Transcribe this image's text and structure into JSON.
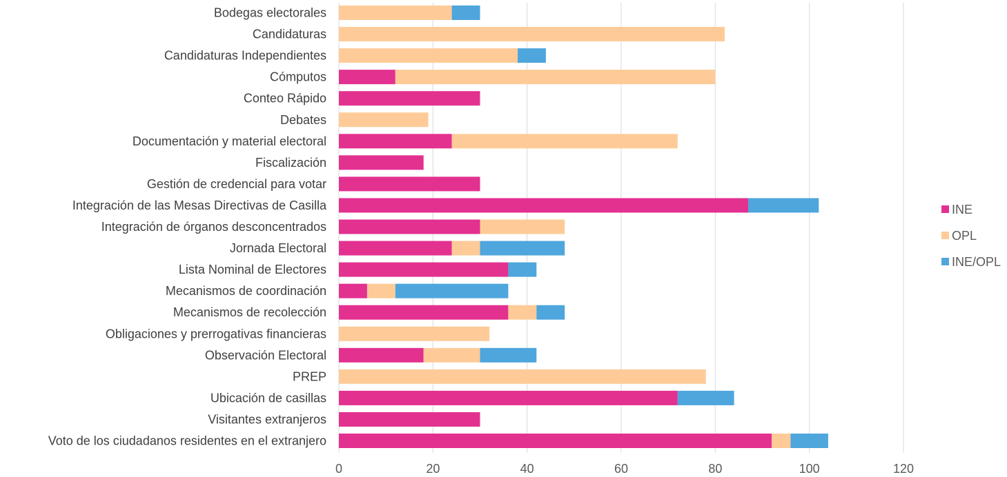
{
  "chart_data": {
    "type": "bar",
    "orientation": "horizontal",
    "stacked": true,
    "categories": [
      "Bodegas electorales",
      "Candidaturas",
      "Candidaturas Independientes",
      "Cómputos",
      "Conteo Rápido",
      "Debates",
      "Documentación y material electoral",
      "Fiscalización",
      "Gestión de credencial para votar",
      "Integración de las Mesas Directivas de Casilla",
      "Integración de órganos desconcentrados",
      "Jornada Electoral",
      "Lista Nominal de Electores",
      "Mecanismos de coordinación",
      "Mecanismos de recolección",
      "Obligaciones y prerrogativas financieras",
      "Observación Electoral",
      "PREP",
      "Ubicación de casillas",
      "Visitantes extranjeros",
      "Voto de los ciudadanos residentes en el extranjero"
    ],
    "series": [
      {
        "name": "INE",
        "color": "#e33190",
        "values": [
          0,
          0,
          0,
          12,
          30,
          0,
          24,
          18,
          30,
          87,
          30,
          24,
          36,
          6,
          36,
          0,
          18,
          0,
          72,
          30,
          92
        ]
      },
      {
        "name": "OPL",
        "color": "#fecb98",
        "values": [
          24,
          82,
          38,
          68,
          0,
          19,
          48,
          0,
          0,
          0,
          18,
          6,
          0,
          6,
          6,
          32,
          12,
          78,
          0,
          0,
          4
        ]
      },
      {
        "name": "INE/OPL",
        "color": "#4ea6dc",
        "values": [
          6,
          0,
          6,
          0,
          0,
          0,
          0,
          0,
          0,
          15,
          0,
          18,
          6,
          24,
          6,
          0,
          12,
          0,
          12,
          0,
          8
        ]
      }
    ],
    "x_ticks": [
      "0",
      "20",
      "40",
      "60",
      "80",
      "100",
      "120"
    ],
    "xlim": [
      0,
      120
    ],
    "grid": true,
    "legend": "right"
  }
}
